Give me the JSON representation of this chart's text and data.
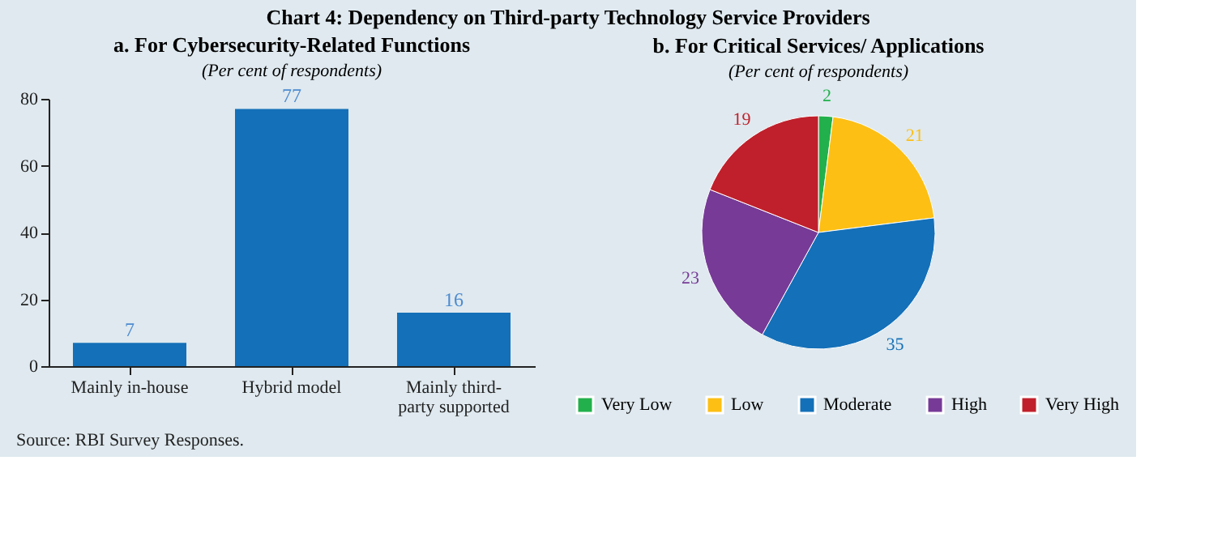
{
  "chart_data": [
    {
      "type": "bar",
      "title": "a. For Cybersecurity-Related Functions",
      "subtitle": "(Per cent of respondents)",
      "annotations": [
        "Chart 4: Dependency on Third-party Technology Service Providers"
      ],
      "categories": [
        "Mainly in-house",
        "Hybrid model",
        "Mainly third-party supported"
      ],
      "values": [
        7,
        77,
        16
      ],
      "color": "#1470b8",
      "ylim": [
        0,
        80
      ],
      "yticks": [
        0,
        20,
        40,
        60,
        80
      ],
      "grid": false,
      "data_labels": true
    },
    {
      "type": "pie",
      "title": "b. For Critical Services/ Applications",
      "subtitle": "(Per cent of respondents)",
      "annotations": [
        "Source: RBI Survey Responses."
      ],
      "categories": [
        "Very Low",
        "Low",
        "Moderate",
        "High",
        "Very High"
      ],
      "values": [
        2,
        21,
        35,
        23,
        19
      ],
      "colors": [
        "#22b04c",
        "#fdbf14",
        "#1470b8",
        "#773b97",
        "#c0202b"
      ],
      "data_labels": true,
      "legend": "bottom"
    }
  ]
}
